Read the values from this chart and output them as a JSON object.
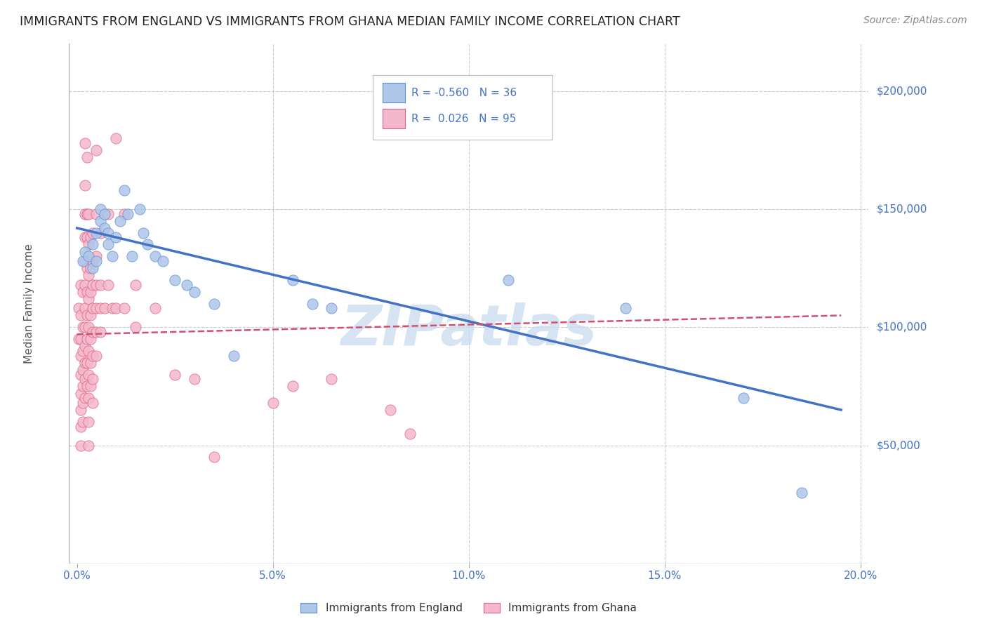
{
  "title": "IMMIGRANTS FROM ENGLAND VS IMMIGRANTS FROM GHANA MEDIAN FAMILY INCOME CORRELATION CHART",
  "source": "Source: ZipAtlas.com",
  "xlabel_ticks": [
    "0.0%",
    "5.0%",
    "10.0%",
    "15.0%",
    "20.0%"
  ],
  "xlabel_vals": [
    0.0,
    0.05,
    0.1,
    0.15,
    0.2
  ],
  "ylabel": "Median Family Income",
  "ylabel_ticks": [
    0,
    50000,
    100000,
    150000,
    200000
  ],
  "ylabel_labels": [
    "",
    "$50,000",
    "$100,000",
    "$150,000",
    "$200,000"
  ],
  "england_R": "-0.560",
  "england_N": 36,
  "ghana_R": "0.026",
  "ghana_N": 95,
  "england_color": "#aec6e8",
  "ghana_color": "#f4b8cc",
  "england_edge_color": "#5b8fd4",
  "ghana_edge_color": "#e06080",
  "england_line_color": "#4472c4",
  "ghana_line_color": "#d05070",
  "england_scatter": [
    [
      0.0015,
      128000
    ],
    [
      0.002,
      132000
    ],
    [
      0.003,
      130000
    ],
    [
      0.004,
      135000
    ],
    [
      0.004,
      125000
    ],
    [
      0.005,
      140000
    ],
    [
      0.005,
      128000
    ],
    [
      0.006,
      145000
    ],
    [
      0.006,
      150000
    ],
    [
      0.007,
      142000
    ],
    [
      0.007,
      148000
    ],
    [
      0.008,
      140000
    ],
    [
      0.008,
      135000
    ],
    [
      0.009,
      130000
    ],
    [
      0.01,
      138000
    ],
    [
      0.011,
      145000
    ],
    [
      0.012,
      158000
    ],
    [
      0.013,
      148000
    ],
    [
      0.014,
      130000
    ],
    [
      0.016,
      150000
    ],
    [
      0.017,
      140000
    ],
    [
      0.018,
      135000
    ],
    [
      0.02,
      130000
    ],
    [
      0.022,
      128000
    ],
    [
      0.025,
      120000
    ],
    [
      0.028,
      118000
    ],
    [
      0.03,
      115000
    ],
    [
      0.035,
      110000
    ],
    [
      0.04,
      88000
    ],
    [
      0.055,
      120000
    ],
    [
      0.06,
      110000
    ],
    [
      0.065,
      108000
    ],
    [
      0.11,
      120000
    ],
    [
      0.14,
      108000
    ],
    [
      0.17,
      70000
    ],
    [
      0.185,
      30000
    ]
  ],
  "ghana_scatter": [
    [
      0.0005,
      108000
    ],
    [
      0.0005,
      95000
    ],
    [
      0.001,
      118000
    ],
    [
      0.001,
      105000
    ],
    [
      0.001,
      95000
    ],
    [
      0.001,
      88000
    ],
    [
      0.001,
      80000
    ],
    [
      0.001,
      72000
    ],
    [
      0.001,
      65000
    ],
    [
      0.001,
      58000
    ],
    [
      0.001,
      50000
    ],
    [
      0.0015,
      115000
    ],
    [
      0.0015,
      100000
    ],
    [
      0.0015,
      90000
    ],
    [
      0.0015,
      82000
    ],
    [
      0.0015,
      75000
    ],
    [
      0.0015,
      68000
    ],
    [
      0.0015,
      60000
    ],
    [
      0.002,
      178000
    ],
    [
      0.002,
      160000
    ],
    [
      0.002,
      148000
    ],
    [
      0.002,
      138000
    ],
    [
      0.002,
      128000
    ],
    [
      0.002,
      118000
    ],
    [
      0.002,
      108000
    ],
    [
      0.002,
      100000
    ],
    [
      0.002,
      92000
    ],
    [
      0.002,
      85000
    ],
    [
      0.002,
      78000
    ],
    [
      0.002,
      70000
    ],
    [
      0.0025,
      172000
    ],
    [
      0.0025,
      148000
    ],
    [
      0.0025,
      138000
    ],
    [
      0.0025,
      125000
    ],
    [
      0.0025,
      115000
    ],
    [
      0.0025,
      105000
    ],
    [
      0.0025,
      95000
    ],
    [
      0.0025,
      85000
    ],
    [
      0.0025,
      75000
    ],
    [
      0.003,
      148000
    ],
    [
      0.003,
      135000
    ],
    [
      0.003,
      122000
    ],
    [
      0.003,
      112000
    ],
    [
      0.003,
      100000
    ],
    [
      0.003,
      90000
    ],
    [
      0.003,
      80000
    ],
    [
      0.003,
      70000
    ],
    [
      0.003,
      60000
    ],
    [
      0.003,
      50000
    ],
    [
      0.0035,
      138000
    ],
    [
      0.0035,
      125000
    ],
    [
      0.0035,
      115000
    ],
    [
      0.0035,
      105000
    ],
    [
      0.0035,
      95000
    ],
    [
      0.0035,
      85000
    ],
    [
      0.0035,
      75000
    ],
    [
      0.004,
      140000
    ],
    [
      0.004,
      128000
    ],
    [
      0.004,
      118000
    ],
    [
      0.004,
      108000
    ],
    [
      0.004,
      98000
    ],
    [
      0.004,
      88000
    ],
    [
      0.004,
      78000
    ],
    [
      0.004,
      68000
    ],
    [
      0.005,
      175000
    ],
    [
      0.005,
      148000
    ],
    [
      0.005,
      130000
    ],
    [
      0.005,
      118000
    ],
    [
      0.005,
      108000
    ],
    [
      0.005,
      98000
    ],
    [
      0.005,
      88000
    ],
    [
      0.006,
      140000
    ],
    [
      0.006,
      118000
    ],
    [
      0.006,
      108000
    ],
    [
      0.006,
      98000
    ],
    [
      0.007,
      148000
    ],
    [
      0.007,
      108000
    ],
    [
      0.008,
      148000
    ],
    [
      0.008,
      118000
    ],
    [
      0.009,
      108000
    ],
    [
      0.01,
      180000
    ],
    [
      0.01,
      108000
    ],
    [
      0.012,
      148000
    ],
    [
      0.012,
      108000
    ],
    [
      0.015,
      118000
    ],
    [
      0.015,
      100000
    ],
    [
      0.02,
      108000
    ],
    [
      0.025,
      80000
    ],
    [
      0.03,
      78000
    ],
    [
      0.035,
      45000
    ],
    [
      0.05,
      68000
    ],
    [
      0.055,
      75000
    ],
    [
      0.065,
      78000
    ],
    [
      0.08,
      65000
    ],
    [
      0.085,
      55000
    ]
  ],
  "england_trendline": [
    [
      0.0,
      142000
    ],
    [
      0.195,
      65000
    ]
  ],
  "ghana_trendline": [
    [
      0.0,
      97000
    ],
    [
      0.195,
      105000
    ]
  ],
  "xlim": [
    -0.002,
    0.202
  ],
  "ylim": [
    0,
    220000
  ],
  "background_color": "#ffffff",
  "grid_color": "#cccccc",
  "watermark_text": "ZIPatlas",
  "watermark_color": "#c5d8ed",
  "title_fontsize": 12.5,
  "source_fontsize": 10,
  "axis_label_color": "#4472c4",
  "tick_color": "#4472c4",
  "legend_text_color": "#4472c4"
}
